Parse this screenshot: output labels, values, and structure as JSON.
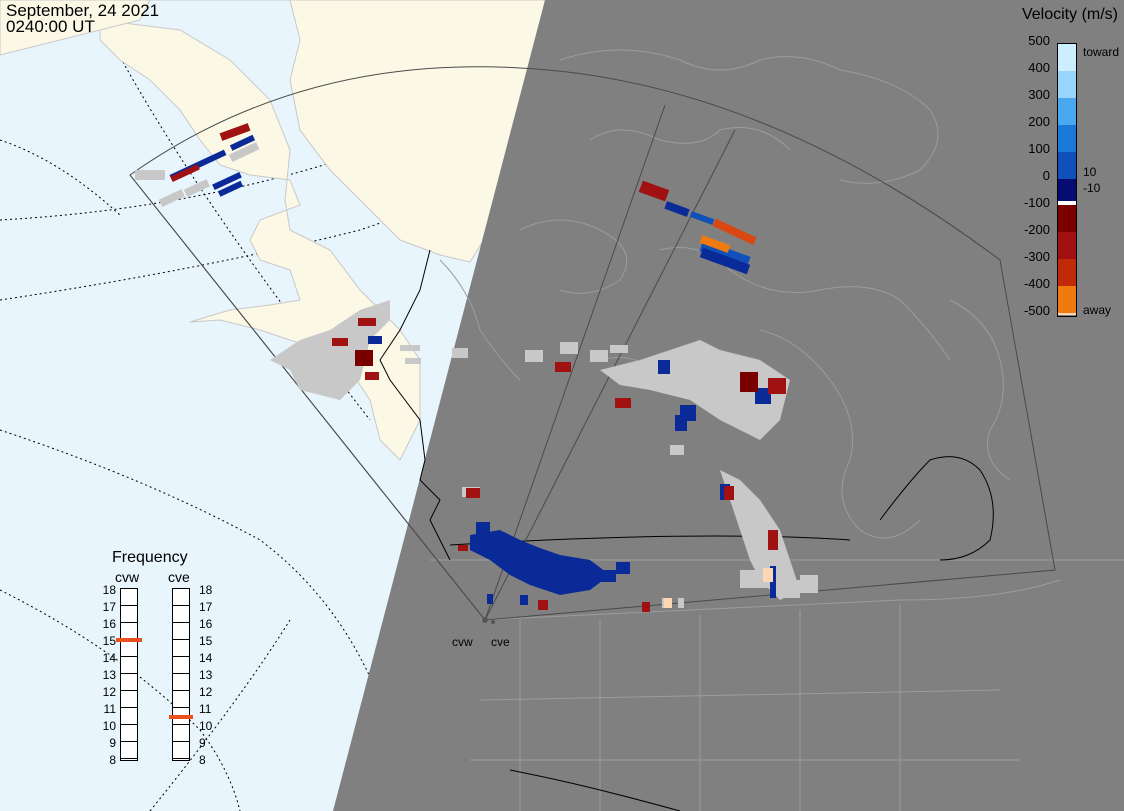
{
  "header": {
    "date": "September, 24 2021",
    "time": "0240:00 UT"
  },
  "velocity_scale": {
    "title": "Velocity (m/s)",
    "ticks": [
      "500",
      "400",
      "300",
      "200",
      "100",
      "0",
      "-100",
      "-200",
      "-300",
      "-400",
      "-500"
    ],
    "labels": {
      "toward": "toward",
      "away": "away",
      "plus10": "10",
      "minus10": "-10"
    },
    "colors": {
      "toward": [
        "#cceeff",
        "#9ad6fb",
        "#4aa8f0",
        "#1a78d8",
        "#1050b8",
        "#0a2a98",
        "#060c70"
      ],
      "away": [
        "#7a0000",
        "#a01212",
        "#c02a08",
        "#d84810",
        "#ef7a10",
        "#f8a050",
        "#fdd7b5"
      ],
      "ground_scatter": "#c8c8c8"
    }
  },
  "frequency": {
    "title": "Frequency",
    "radars": [
      {
        "name": "cvw",
        "value_mhz": 15,
        "ticks": [
          "18",
          "17",
          "16",
          "15",
          "14",
          "13",
          "12",
          "11",
          "10",
          "9",
          "8"
        ]
      },
      {
        "name": "cve",
        "value_mhz": 10.5,
        "ticks": [
          "18",
          "17",
          "16",
          "15",
          "14",
          "13",
          "12",
          "11",
          "10",
          "9",
          "8"
        ]
      }
    ]
  },
  "sites": {
    "cvw": "cvw",
    "cve": "cve"
  },
  "map_colors": {
    "ocean": "#e8f5fd",
    "land_day": "#fbf8e6",
    "night": "#808080",
    "night_border": "#9a9a9a"
  }
}
